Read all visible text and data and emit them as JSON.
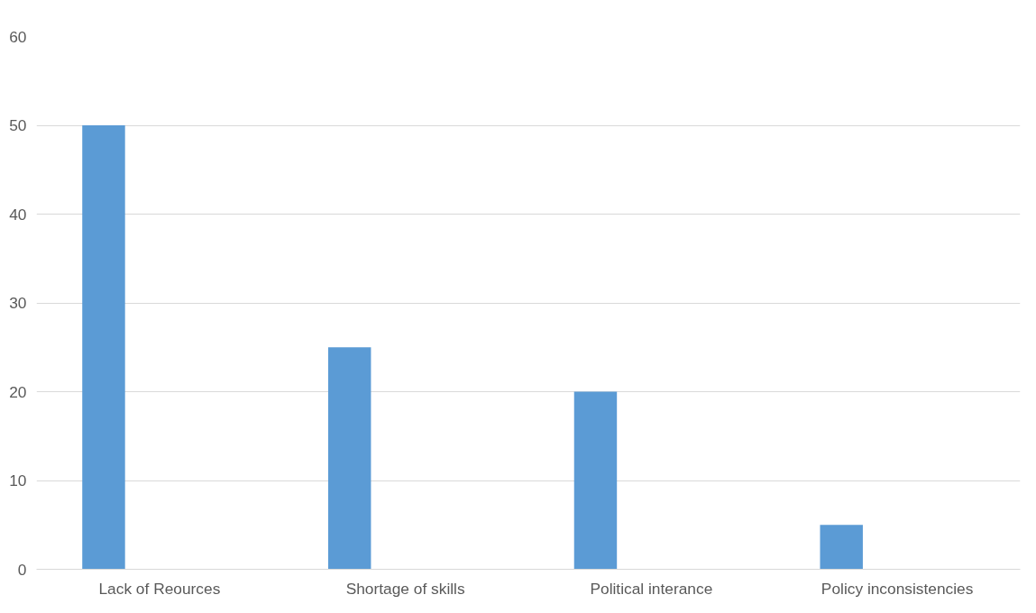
{
  "chart_data": {
    "type": "bar",
    "categories": [
      "Lack of Reources",
      "Shortage of skills",
      "Political interance",
      "Policy inconsistencies"
    ],
    "values": [
      50,
      25,
      20,
      5
    ],
    "color": "#5b9bd5",
    "ylim": [
      0,
      60
    ],
    "yticks": [
      0,
      10,
      20,
      30,
      40,
      50,
      60
    ],
    "grid": "y"
  }
}
